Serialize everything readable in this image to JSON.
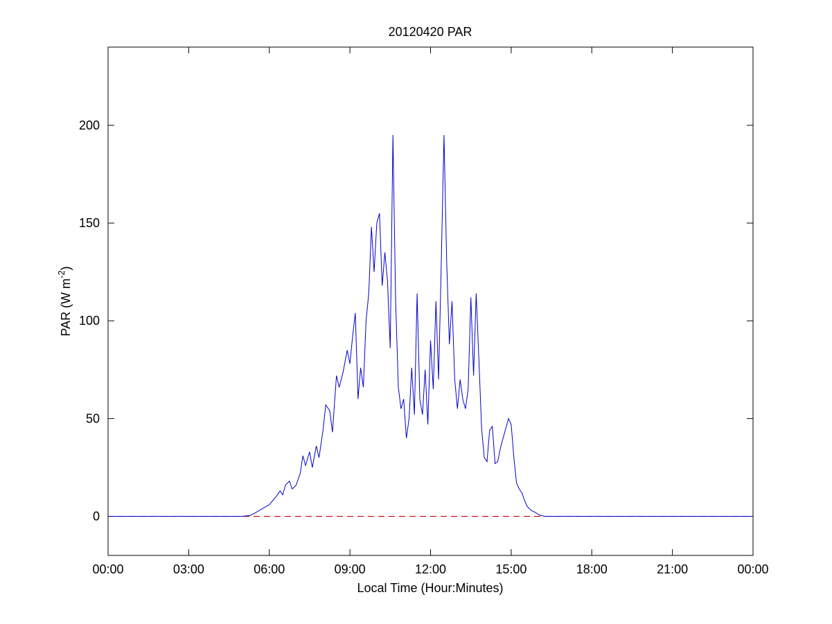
{
  "chart_data": {
    "type": "line",
    "title": "20120420 PAR",
    "xlabel": "Local Time (Hour:Minutes)",
    "ylabel": {
      "prefix": "PAR (W m",
      "exponent": "-2",
      "suffix": ")"
    },
    "xlim": [
      0,
      24
    ],
    "ylim": [
      -20,
      240
    ],
    "x_tick_values": [
      0,
      3,
      6,
      9,
      12,
      15,
      18,
      21,
      24
    ],
    "x_tick_labels": [
      "00:00",
      "03:00",
      "06:00",
      "09:00",
      "12:00",
      "15:00",
      "18:00",
      "21:00",
      "00:00"
    ],
    "y_tick_values": [
      0,
      50,
      100,
      150,
      200
    ],
    "y_tick_labels": [
      "0",
      "50",
      "100",
      "150",
      "200"
    ],
    "grid": false,
    "colors": {
      "series": "#0000cc",
      "baseline": "#cc0000"
    },
    "reference_line": {
      "y": 0,
      "style": "dashed"
    },
    "series": [
      {
        "x": [
          0,
          5.0,
          5.3,
          5.5,
          5.75,
          6.0,
          6.25,
          6.4,
          6.5,
          6.6,
          6.75,
          6.85,
          7.0,
          7.15,
          7.25,
          7.35,
          7.5,
          7.6,
          7.75,
          7.85,
          8.0,
          8.1,
          8.25,
          8.35,
          8.5,
          8.6,
          8.75,
          8.9,
          9.0,
          9.1,
          9.2,
          9.3,
          9.4,
          9.5,
          9.6,
          9.7,
          9.8,
          9.9,
          10.0,
          10.1,
          10.2,
          10.3,
          10.4,
          10.5,
          10.6,
          10.7,
          10.8,
          10.9,
          11.0,
          11.1,
          11.2,
          11.3,
          11.4,
          11.5,
          11.6,
          11.7,
          11.8,
          11.9,
          12.0,
          12.1,
          12.2,
          12.3,
          12.4,
          12.5,
          12.6,
          12.7,
          12.8,
          12.9,
          13.0,
          13.1,
          13.2,
          13.3,
          13.4,
          13.5,
          13.6,
          13.7,
          13.8,
          13.9,
          14.0,
          14.1,
          14.2,
          14.3,
          14.4,
          14.5,
          14.6,
          14.7,
          14.8,
          14.9,
          15.0,
          15.1,
          15.2,
          15.3,
          15.4,
          15.5,
          15.6,
          15.75,
          15.9,
          16.0,
          16.1,
          16.25,
          16.4,
          16.5,
          16.6,
          16.75,
          17.0,
          17.25,
          17.5,
          17.75,
          18.0,
          18.25,
          18.5,
          24
        ],
        "y": [
          0,
          0,
          0.5,
          2,
          4,
          6,
          10,
          13,
          11,
          16,
          18,
          14,
          16,
          22,
          31,
          26,
          33,
          25,
          36,
          30,
          44,
          57,
          54,
          43,
          72,
          66,
          74,
          85,
          78,
          92,
          104,
          60,
          76,
          66,
          100,
          114,
          148,
          125,
          150,
          155,
          118,
          135,
          120,
          86,
          195,
          110,
          66,
          55,
          60,
          40,
          50,
          76,
          52,
          114,
          60,
          52,
          75,
          47,
          90,
          65,
          110,
          70,
          130,
          195,
          130,
          88,
          110,
          70,
          55,
          70,
          60,
          55,
          65,
          112,
          72,
          114,
          80,
          45,
          30,
          28,
          44,
          46,
          27,
          28,
          35,
          40,
          45,
          50,
          47,
          30,
          17,
          14,
          12,
          8,
          5,
          3,
          2,
          1,
          0.5,
          0,
          0,
          0,
          0,
          0,
          0,
          0,
          0,
          0,
          0,
          0,
          0,
          0
        ]
      }
    ]
  }
}
